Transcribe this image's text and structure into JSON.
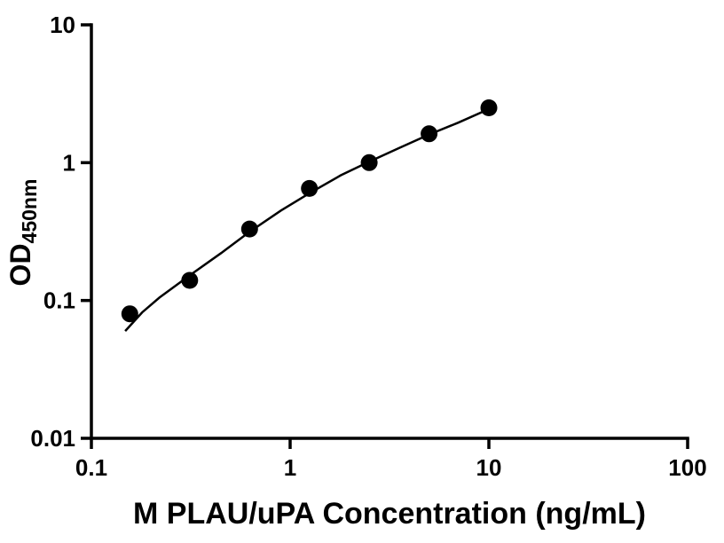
{
  "chart_data": {
    "type": "scatter",
    "title": "",
    "xlabel": "M PLAU/uPA Concentration (ng/mL)",
    "ylabel_main": "OD",
    "ylabel_sub": "450nm",
    "x_scale": "log",
    "y_scale": "log",
    "xlim": [
      0.1,
      100
    ],
    "ylim": [
      0.01,
      10
    ],
    "x_ticks": [
      0.1,
      1,
      10,
      100
    ],
    "x_tick_labels": [
      "0.1",
      "1",
      "10",
      "100"
    ],
    "y_ticks": [
      0.01,
      0.1,
      1,
      10
    ],
    "y_tick_labels": [
      "0.01",
      "0.1",
      "1",
      "10"
    ],
    "grid": false,
    "legend": "none",
    "marker_color": "#000000",
    "curve_color": "#000000",
    "series": [
      {
        "name": "standard-curve-points",
        "marker": "circle",
        "points": [
          {
            "x": 0.156,
            "y": 0.08
          },
          {
            "x": 0.3125,
            "y": 0.14
          },
          {
            "x": 0.625,
            "y": 0.33
          },
          {
            "x": 1.25,
            "y": 0.65
          },
          {
            "x": 2.5,
            "y": 1.0
          },
          {
            "x": 5,
            "y": 1.62
          },
          {
            "x": 10,
            "y": 2.5
          }
        ]
      }
    ],
    "fit_curve": {
      "anchors": [
        {
          "x": 0.148,
          "y": 0.06
        },
        {
          "x": 0.18,
          "y": 0.082
        },
        {
          "x": 0.22,
          "y": 0.105
        },
        {
          "x": 0.3125,
          "y": 0.152
        },
        {
          "x": 0.45,
          "y": 0.221
        },
        {
          "x": 0.625,
          "y": 0.315
        },
        {
          "x": 0.9,
          "y": 0.45
        },
        {
          "x": 1.25,
          "y": 0.6
        },
        {
          "x": 1.8,
          "y": 0.81
        },
        {
          "x": 2.5,
          "y": 1.015
        },
        {
          "x": 3.5,
          "y": 1.27
        },
        {
          "x": 5.0,
          "y": 1.6
        },
        {
          "x": 7.0,
          "y": 1.95
        },
        {
          "x": 10.0,
          "y": 2.45
        }
      ]
    }
  }
}
